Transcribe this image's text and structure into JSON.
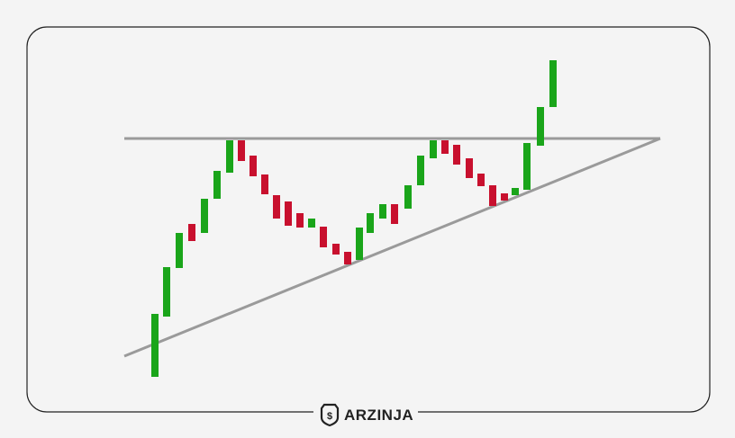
{
  "logo": {
    "text": "ARZINJA"
  }
}
